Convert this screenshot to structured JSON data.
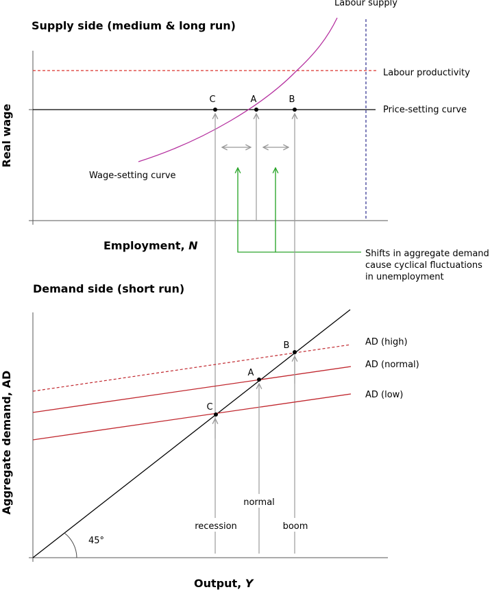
{
  "supply": {
    "title": "Supply side (medium & long run)",
    "y_axis_label": "Real wage",
    "x_axis_label": "Employment, ",
    "x_axis_var": "N",
    "labels": {
      "labour_supply": "Labour supply",
      "labour_productivity": "Labour productivity",
      "price_setting": "Price-setting curve",
      "wage_setting": "Wage-setting curve"
    },
    "points": [
      "C",
      "A",
      "B"
    ]
  },
  "annotation": {
    "line1": "Shifts in aggregate demand",
    "line2": "cause cyclical fluctuations",
    "line3": "in unemployment"
  },
  "demand": {
    "title": "Demand side (short run)",
    "y_axis_label": "Aggregate demand, AD",
    "x_axis_label": "Output, ",
    "x_axis_var": "Y",
    "labels": {
      "ad_high": "AD (high)",
      "ad_normal": "AD (normal)",
      "ad_low": "AD (low)",
      "angle": "45°"
    },
    "points": [
      "B",
      "A",
      "C"
    ],
    "regimes": {
      "recession": "recession",
      "normal": "normal",
      "boom": "boom"
    }
  },
  "colors": {
    "wage_setting": "#b5309f",
    "productivity": "#d9302a",
    "labour_supply": "#2a2a8c",
    "ad": "#c0262d",
    "shift_arrows": "#2aa52a",
    "guide": "#999999",
    "axis": "#555555"
  }
}
